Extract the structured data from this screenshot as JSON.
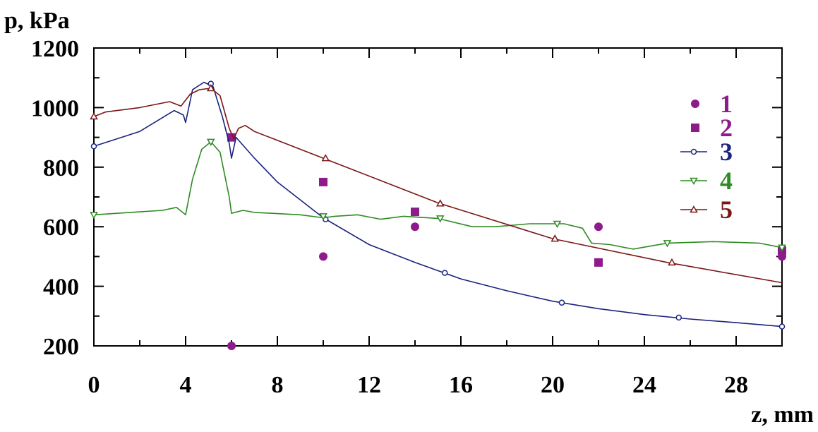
{
  "chart_data": {
    "type": "line",
    "ylabel": "p, kPa",
    "xlabel": "z, mm",
    "xlim": [
      0,
      30
    ],
    "ylim": [
      200,
      1200
    ],
    "x_ticks": [
      0,
      4,
      8,
      12,
      16,
      20,
      24,
      28
    ],
    "y_ticks": [
      200,
      400,
      600,
      800,
      1000,
      1200
    ],
    "legend_position": "top-right",
    "series": [
      {
        "name": "1",
        "kind": "scatter",
        "marker": "circle",
        "color": "#8e1b8c",
        "x": [
          6,
          10,
          14,
          22,
          30
        ],
        "y": [
          200,
          500,
          600,
          600,
          500
        ]
      },
      {
        "name": "2",
        "kind": "scatter",
        "marker": "square",
        "color": "#8e1b8c",
        "x": [
          6,
          10,
          14,
          22,
          30
        ],
        "y": [
          900,
          750,
          650,
          480,
          520
        ]
      },
      {
        "name": "3",
        "kind": "line",
        "marker": "circle-open",
        "color": "#1a237e",
        "x": [
          0,
          2,
          3.5,
          3.9,
          4.0,
          4.3,
          4.8,
          5.2,
          5.6,
          5.9,
          6.0,
          6.2,
          7,
          8,
          10,
          12,
          14,
          16,
          18,
          20,
          22,
          24,
          26,
          28,
          30
        ],
        "y": [
          870,
          920,
          990,
          975,
          950,
          1060,
          1085,
          1070,
          970,
          880,
          830,
          900,
          830,
          750,
          630,
          540,
          480,
          425,
          385,
          350,
          325,
          305,
          290,
          278,
          265
        ],
        "marker_x": [
          0,
          5.1,
          10.1,
          15.3,
          20.4,
          25.5,
          30
        ],
        "marker_y": [
          870,
          1080,
          625,
          445,
          345,
          295,
          265
        ]
      },
      {
        "name": "4",
        "kind": "line",
        "marker": "triangle-down-open",
        "color": "#2e8b22",
        "x": [
          0,
          1,
          2,
          3,
          3.6,
          4.0,
          4.3,
          4.7,
          5.1,
          5.5,
          5.9,
          6.0,
          6.5,
          7,
          9,
          10,
          10.5,
          11.5,
          12.5,
          13.5,
          15,
          16.5,
          17.5,
          19,
          20.5,
          21.3,
          21.7,
          22.5,
          23.5,
          25,
          27,
          29,
          30
        ],
        "y": [
          640,
          645,
          650,
          655,
          665,
          640,
          760,
          860,
          885,
          850,
          700,
          645,
          655,
          648,
          640,
          630,
          635,
          640,
          625,
          635,
          628,
          600,
          600,
          610,
          610,
          595,
          545,
          540,
          525,
          545,
          550,
          545,
          530
        ],
        "marker_x": [
          0,
          5.1,
          10.0,
          15.1,
          20.2,
          25.0,
          30
        ],
        "marker_y": [
          640,
          885,
          635,
          628,
          610,
          545,
          530
        ]
      },
      {
        "name": "5",
        "kind": "line",
        "marker": "triangle-up-open",
        "color": "#7a1616",
        "x": [
          0,
          0.5,
          2,
          3.3,
          3.8,
          4.2,
          4.6,
          5.1,
          5.5,
          5.9,
          6.1,
          6.3,
          6.6,
          7,
          10,
          15,
          20,
          25,
          30
        ],
        "y": [
          970,
          985,
          1000,
          1020,
          1005,
          1045,
          1060,
          1065,
          1040,
          930,
          895,
          930,
          940,
          920,
          830,
          680,
          560,
          480,
          412
        ],
        "marker_x": [
          0,
          5.1,
          10.1,
          15.1,
          20.1,
          25.2
        ],
        "marker_y": [
          970,
          1065,
          830,
          678,
          560,
          480
        ]
      }
    ]
  }
}
